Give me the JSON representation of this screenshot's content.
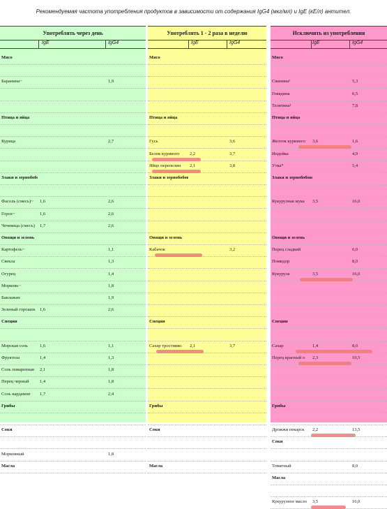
{
  "caption": "Рекомендуемая частота употребления продуктов в зависимости от содержания IgG4 (мкг/мл) и IgE (кЕ/л) антител.",
  "columns": [
    {
      "id": "colA",
      "title": "Употреблять через день",
      "ige": "IgE",
      "igg4": "IgG4",
      "rows": [
        {
          "name": "Мясо",
          "ige": "",
          "igg4": "",
          "cat": true
        },
        {
          "name": "",
          "ige": "",
          "igg4": ""
        },
        {
          "name": "Баранина~",
          "ige": "",
          "igg4": "1,9"
        },
        {
          "name": "",
          "ige": "",
          "igg4": ""
        },
        {
          "name": "",
          "ige": "",
          "igg4": ""
        },
        {
          "name": "Птица и яйца",
          "ige": "",
          "igg4": "",
          "cat": true
        },
        {
          "name": "",
          "ige": "",
          "igg4": ""
        },
        {
          "name": "Курица",
          "ige": "",
          "igg4": "2,7"
        },
        {
          "name": "",
          "ige": "",
          "igg4": ""
        },
        {
          "name": "",
          "ige": "",
          "igg4": ""
        },
        {
          "name": "Злаки и зернобобовые",
          "ige": "",
          "igg4": "",
          "cat": true
        },
        {
          "name": "",
          "ige": "",
          "igg4": ""
        },
        {
          "name": "Фасоль (смесь)~",
          "ige": "1,6",
          "igg4": "2,6"
        },
        {
          "name": "Горох~",
          "ige": "1,6",
          "igg4": "2,6"
        },
        {
          "name": "Чечевица (смесь)",
          "ige": "1,7",
          "igg4": "2,6"
        },
        {
          "name": "Овощи и зелень",
          "ige": "",
          "igg4": "",
          "cat": true
        },
        {
          "name": "Картофель~",
          "ige": "",
          "igg4": "1,1"
        },
        {
          "name": "Свекла",
          "ige": "",
          "igg4": "1,3"
        },
        {
          "name": "Огурец",
          "ige": "",
          "igg4": "1,4"
        },
        {
          "name": "Морковь~",
          "ige": "",
          "igg4": "1,8"
        },
        {
          "name": "Баклажан",
          "ige": "",
          "igg4": "1,9"
        },
        {
          "name": "Зеленый горошек",
          "ige": "1,6",
          "igg4": "2,6"
        },
        {
          "name": "Специи",
          "ige": "",
          "igg4": "",
          "cat": true
        },
        {
          "name": "",
          "ige": "",
          "igg4": ""
        },
        {
          "name": "Морская соль",
          "ige": "1,6",
          "igg4": "1,1"
        },
        {
          "name": "Фруктоза",
          "ige": "1,4",
          "igg4": "1,3"
        },
        {
          "name": "Соль поваренная",
          "ige": "2,1",
          "igg4": "1,8"
        },
        {
          "name": "Перец черный",
          "ige": "1,4",
          "igg4": "1,8"
        },
        {
          "name": "Соль кардамон",
          "ige": "1,7",
          "igg4": "2,4"
        },
        {
          "name": "Грибы",
          "ige": "",
          "igg4": "",
          "cat": true
        },
        {
          "name": "",
          "ige": "",
          "igg4": ""
        },
        {
          "name": "Соки",
          "ige": "",
          "igg4": "",
          "cat": true
        },
        {
          "name": "",
          "ige": "",
          "igg4": ""
        },
        {
          "name": "Морковный",
          "ige": "",
          "igg4": "1,8"
        },
        {
          "name": "Масла",
          "ige": "",
          "igg4": "",
          "cat": true
        }
      ]
    },
    {
      "id": "colB",
      "title": "Употреблять 1 - 2 раза в неделю",
      "ige": "IgE",
      "igg4": "IgG4",
      "rows": [
        {
          "name": "Мясо",
          "ige": "",
          "igg4": "",
          "cat": true
        },
        {
          "name": "",
          "ige": "",
          "igg4": ""
        },
        {
          "name": "",
          "ige": "",
          "igg4": ""
        },
        {
          "name": "",
          "ige": "",
          "igg4": ""
        },
        {
          "name": "",
          "ige": "",
          "igg4": ""
        },
        {
          "name": "Птица и яйца",
          "ige": "",
          "igg4": "",
          "cat": true
        },
        {
          "name": "",
          "ige": "",
          "igg4": ""
        },
        {
          "name": "Гусь",
          "ige": "",
          "igg4": "3,6"
        },
        {
          "name": "Белок куриного",
          "ige": "2,2",
          "igg4": "3,7"
        },
        {
          "name": "Яйцо перепелин",
          "ige": "2,1",
          "igg4": "3,8"
        },
        {
          "name": "Злаки и зернобобовые",
          "ige": "",
          "igg4": "",
          "cat": true
        },
        {
          "name": "",
          "ige": "",
          "igg4": ""
        },
        {
          "name": "",
          "ige": "",
          "igg4": ""
        },
        {
          "name": "",
          "ige": "",
          "igg4": ""
        },
        {
          "name": "",
          "ige": "",
          "igg4": ""
        },
        {
          "name": "Овощи и зелень",
          "ige": "",
          "igg4": "",
          "cat": true
        },
        {
          "name": "Кабачок",
          "ige": "",
          "igg4": "3,2"
        },
        {
          "name": "",
          "ige": "",
          "igg4": ""
        },
        {
          "name": "",
          "ige": "",
          "igg4": ""
        },
        {
          "name": "",
          "ige": "",
          "igg4": ""
        },
        {
          "name": "",
          "ige": "",
          "igg4": ""
        },
        {
          "name": "",
          "ige": "",
          "igg4": ""
        },
        {
          "name": "Специи",
          "ige": "",
          "igg4": "",
          "cat": true
        },
        {
          "name": "",
          "ige": "",
          "igg4": ""
        },
        {
          "name": "Сахар тростнико",
          "ige": "2,1",
          "igg4": "3,7"
        },
        {
          "name": "",
          "ige": "",
          "igg4": ""
        },
        {
          "name": "",
          "ige": "",
          "igg4": ""
        },
        {
          "name": "",
          "ige": "",
          "igg4": ""
        },
        {
          "name": "",
          "ige": "",
          "igg4": ""
        },
        {
          "name": "Грибы",
          "ige": "",
          "igg4": "",
          "cat": true
        },
        {
          "name": "",
          "ige": "",
          "igg4": ""
        },
        {
          "name": "Соки",
          "ige": "",
          "igg4": "",
          "cat": true
        },
        {
          "name": "",
          "ige": "",
          "igg4": ""
        },
        {
          "name": "",
          "ige": "",
          "igg4": ""
        },
        {
          "name": "Масла",
          "ige": "",
          "igg4": "",
          "cat": true
        }
      ]
    },
    {
      "id": "colC",
      "title": "Исключить из употребления",
      "ige": "IgE",
      "igg4": "IgG4",
      "rows": [
        {
          "name": "Мясо",
          "ige": "",
          "igg4": "",
          "cat": true
        },
        {
          "name": "",
          "ige": "",
          "igg4": ""
        },
        {
          "name": "Свинина¹",
          "ige": "",
          "igg4": "5,3"
        },
        {
          "name": "Говядина",
          "ige": "",
          "igg4": "6,5"
        },
        {
          "name": "Телятина¹",
          "ige": "",
          "igg4": "7,8"
        },
        {
          "name": "Птица и яйца",
          "ige": "",
          "igg4": "",
          "cat": true
        },
        {
          "name": "",
          "ige": "",
          "igg4": ""
        },
        {
          "name": "Желток куриного",
          "ige": "3,6",
          "igg4": "1,6"
        },
        {
          "name": "Индейка",
          "ige": "",
          "igg4": "4,9"
        },
        {
          "name": "Утка*",
          "ige": "",
          "igg4": "5,4"
        },
        {
          "name": "Злаки и зернобобовые",
          "ige": "",
          "igg4": "",
          "cat": true
        },
        {
          "name": "",
          "ige": "",
          "igg4": ""
        },
        {
          "name": "Кукурузная мука",
          "ige": "3,5",
          "igg4": "16,0"
        },
        {
          "name": "",
          "ige": "",
          "igg4": ""
        },
        {
          "name": "",
          "ige": "",
          "igg4": ""
        },
        {
          "name": "Овощи и зелень",
          "ige": "",
          "igg4": "",
          "cat": true
        },
        {
          "name": "Перец сладкий",
          "ige": "",
          "igg4": "6,0"
        },
        {
          "name": "Помидор",
          "ige": "",
          "igg4": "8,0"
        },
        {
          "name": "Кукуруза",
          "ige": "3,5",
          "igg4": "16,0"
        },
        {
          "name": "",
          "ige": "",
          "igg4": ""
        },
        {
          "name": "",
          "ige": "",
          "igg4": ""
        },
        {
          "name": "",
          "ige": "",
          "igg4": ""
        },
        {
          "name": "Специи",
          "ige": "",
          "igg4": "",
          "cat": true
        },
        {
          "name": "",
          "ige": "",
          "igg4": ""
        },
        {
          "name": "Сахар",
          "ige": "1,4",
          "igg4": "8,0"
        },
        {
          "name": "Перец красный о",
          "ige": "2,3",
          "igg4": "10,5"
        },
        {
          "name": "",
          "ige": "",
          "igg4": ""
        },
        {
          "name": "",
          "ige": "",
          "igg4": ""
        },
        {
          "name": "",
          "ige": "",
          "igg4": ""
        },
        {
          "name": "Грибы",
          "ige": "",
          "igg4": "",
          "cat": true
        },
        {
          "name": "",
          "ige": "",
          "igg4": ""
        },
        {
          "name": "Дрожжи пекарск",
          "ige": "2,2",
          "igg4": "13,5"
        },
        {
          "name": "Соки",
          "ige": "",
          "igg4": "",
          "cat": true
        },
        {
          "name": "",
          "ige": "",
          "igg4": ""
        },
        {
          "name": "Томатный",
          "ige": "",
          "igg4": "8,0"
        },
        {
          "name": "Масла",
          "ige": "",
          "igg4": "",
          "cat": true
        },
        {
          "name": "",
          "ige": "",
          "igg4": ""
        },
        {
          "name": "Кукурузное масло",
          "ige": "3,5",
          "igg4": "16,0"
        }
      ]
    }
  ]
}
